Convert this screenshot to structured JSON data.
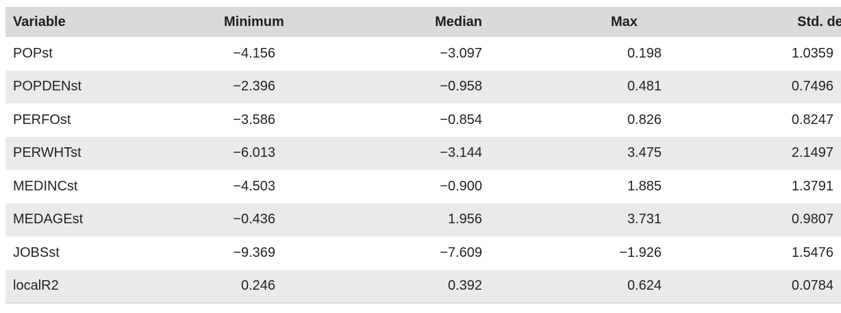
{
  "table": {
    "headers": [
      "Variable",
      "Minimum",
      "Median",
      "Max",
      "Std. dev."
    ],
    "rows": [
      [
        "POPst",
        "−4.156",
        "−3.097",
        "0.198",
        "1.0359"
      ],
      [
        "POPDENst",
        "−2.396",
        "−0.958",
        "0.481",
        "0.7496"
      ],
      [
        "PERFOst",
        "−3.586",
        "−0.854",
        "0.826",
        "0.8247"
      ],
      [
        "PERWHTst",
        "−6.013",
        "−3.144",
        "3.475",
        "2.1497"
      ],
      [
        "MEDINCst",
        "−4.503",
        "−0.900",
        "1.885",
        "1.3791"
      ],
      [
        "MEDAGEst",
        "−0.436",
        "1.956",
        "3.731",
        "0.9807"
      ],
      [
        "JOBSst",
        "−9.369",
        "−7.609",
        "−1.926",
        "1.5476"
      ],
      [
        "localR2",
        "0.246",
        "0.392",
        "0.624",
        "0.0784"
      ]
    ]
  },
  "colors": {
    "header_bg": "#d9dadc",
    "alt_row_bg": "#e9eaec",
    "text": "#222222"
  }
}
